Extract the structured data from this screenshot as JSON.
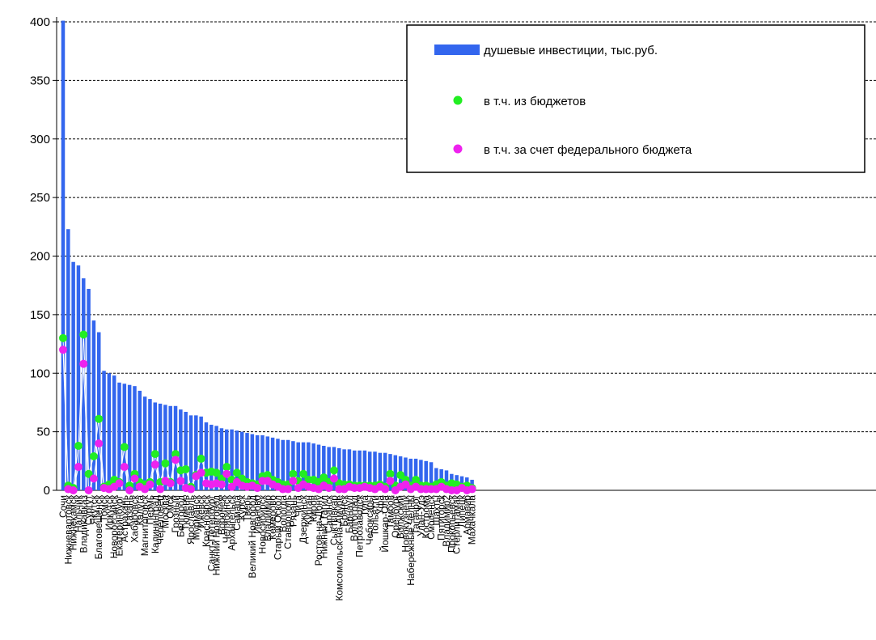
{
  "chart_data": {
    "type": "bar",
    "ylim": [
      0,
      400
    ],
    "yticks": [
      0,
      50,
      100,
      150,
      200,
      250,
      300,
      350,
      400
    ],
    "grid": true,
    "legend_position": "top-right",
    "colors": {
      "bar": "#3366ee",
      "budget": "#22ee22",
      "federal": "#ee22ee",
      "line": "#ffffff",
      "grid": "#000000"
    },
    "categories": [
      "Сочи",
      "Нижневартовск",
      "Нижнекамск",
      "Нальчик",
      "Владикавказ",
      "Сургут",
      "Якутск",
      "Благовещенск",
      "Томск",
      "Иркутск",
      "Новороссийск",
      "Екатеринбург",
      "Астрахань",
      "Казань",
      "Хабаровск",
      "Калуга",
      "Магнитогорск",
      "Пермь",
      "Калининград",
      "Череповец",
      "Москва",
      "Омск",
      "Грозный",
      "Белгород",
      "Тюмень",
      "Ярославль",
      "Мурманск",
      "Ижевск",
      "Красноярск",
      "Санкт-Петербург",
      "Нижний Новгород",
      "Воронеж",
      "Челябинск",
      "Архангельск",
      "Самара",
      "Курск",
      "Тверь",
      "Великий Новгород",
      "Иваново",
      "Новосибирск",
      "Владимир",
      "Кемерово",
      "Старый Оскол",
      "Вологда",
      "Ставрополь",
      "Рязань",
      "Чита",
      "Дзержинск",
      "Курган",
      "Киров",
      "Ростов-на-Дону",
      "Нижний Тагил",
      "Саранск",
      "Сыктывкар",
      "Комсомольск-на-Амуре",
      "Брянск",
      "Барнаул",
      "Волгоград",
      "Петрозаводск",
      "Тула",
      "Чебоксары",
      "Тольятти",
      "Уфа",
      "Йошкар-Ола",
      "Тамбов",
      "Оренбург",
      "Волжский",
      "Новокузнецк",
      "Набережные Челны",
      "Таганрог",
      "Улан-Удэ",
      "Кострома",
      "Смоленск",
      "Шахты",
      "Пятигорск",
      "Владимир2",
      "Прокопьевск",
      "Стерлитамак",
      "Липецк",
      "Армавир",
      "Махачкала"
    ],
    "series": [
      {
        "name": "душевые инвестиции, тыс.руб.",
        "values": [
          401,
          223,
          195,
          192,
          181,
          172,
          145,
          135,
          102,
          100,
          98,
          92,
          91,
          90,
          89,
          85,
          80,
          78,
          75,
          74,
          73,
          72,
          72,
          69,
          67,
          64,
          64,
          63,
          58,
          56,
          55,
          53,
          52,
          52,
          51,
          50,
          49,
          48,
          47,
          47,
          46,
          45,
          44,
          43,
          43,
          42,
          41,
          41,
          41,
          40,
          39,
          38,
          37,
          37,
          36,
          35,
          35,
          34,
          34,
          34,
          33,
          33,
          32,
          32,
          31,
          30,
          29,
          28,
          27,
          27,
          26,
          25,
          24,
          19,
          18,
          17,
          14,
          13,
          12,
          11,
          9
        ]
      },
      {
        "name": "в т.ч. из бюджетов",
        "values": [
          130,
          4,
          2,
          38,
          133,
          14,
          29,
          61,
          3,
          5,
          9,
          7,
          37,
          4,
          14,
          7,
          5,
          7,
          31,
          7,
          23,
          7,
          31,
          17,
          18,
          3,
          13,
          27,
          15,
          16,
          15,
          10,
          20,
          9,
          15,
          10,
          7,
          6,
          5,
          12,
          13,
          9,
          7,
          5,
          5,
          14,
          8,
          14,
          9,
          9,
          7,
          11,
          7,
          17,
          6,
          5,
          5,
          4,
          4,
          4,
          4,
          4,
          5,
          3,
          14,
          4,
          13,
          9,
          4,
          9,
          4,
          4,
          3,
          5,
          7,
          4,
          6,
          5,
          3,
          4,
          2
        ]
      },
      {
        "name": "в т.ч. за счет федерального бюджета",
        "values": [
          120,
          1,
          0,
          20,
          108,
          0,
          10,
          40,
          2,
          1,
          3,
          6,
          20,
          0,
          10,
          3,
          1,
          5,
          22,
          1,
          8,
          6,
          26,
          8,
          2,
          1,
          12,
          15,
          6,
          5,
          6,
          5,
          14,
          3,
          7,
          4,
          3,
          4,
          2,
          8,
          8,
          5,
          3,
          1,
          1,
          8,
          2,
          5,
          3,
          2,
          1,
          4,
          2,
          10,
          1,
          1,
          3,
          2,
          2,
          3,
          2,
          1,
          3,
          1,
          8,
          0,
          3,
          5,
          1,
          3,
          1,
          1,
          1,
          1,
          3,
          1,
          0,
          0,
          2,
          0,
          1
        ]
      }
    ]
  }
}
